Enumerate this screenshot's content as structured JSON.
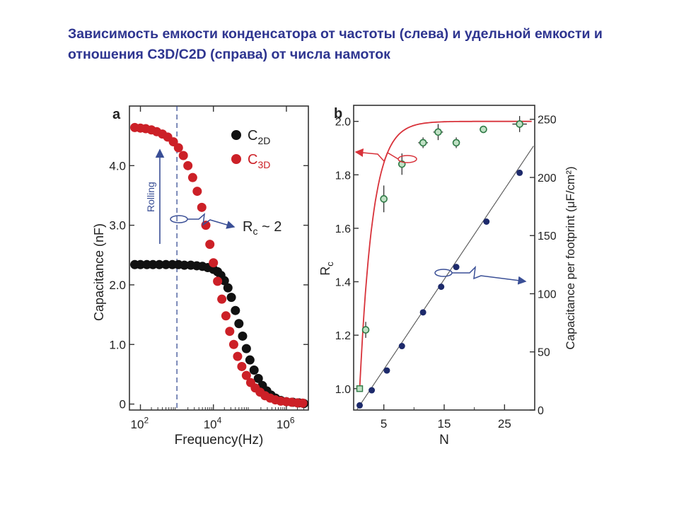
{
  "slide": {
    "title": "Зависимость емкости конденсатора от частоты (слева) и удельной емкости и отношения C3D/C2D (справа) от числа намоток"
  },
  "colors": {
    "title": "#2e3590",
    "c2d": "#111111",
    "c3d": "#cc2027",
    "arrow": "#3a4f96",
    "fit_rc": "#d8323a",
    "rc_points": "#2f7a46",
    "cap_points": "#1d2a6b"
  },
  "chart_data": [
    {
      "type": "scatter",
      "panel_label": "a",
      "xlabel": "Frequency(Hz)",
      "ylabel": "Capacitance (nF)",
      "x_scale": "log",
      "xlim": [
        50,
        4000000
      ],
      "ylim": [
        -0.1,
        5.0
      ],
      "x_ticks": [
        100,
        10000,
        1000000
      ],
      "x_tick_labels": [
        {
          "base": "10",
          "exp": "2"
        },
        {
          "base": "10",
          "exp": "4"
        },
        {
          "base": "10",
          "exp": "6"
        }
      ],
      "y_ticks": [
        0,
        1,
        2,
        3,
        4
      ],
      "y_tick_labels": [
        "0",
        "1.0",
        "2.0",
        "3.0",
        "4.0"
      ],
      "legend": {
        "placement": "top-right",
        "entries": [
          {
            "base": "C",
            "sub": "2D"
          },
          {
            "base": "C",
            "sub": "3D"
          }
        ]
      },
      "annotations": {
        "rolling": "Rolling",
        "ratio_base": "R",
        "ratio_sub": "c",
        "ratio_rest": " ~ 2"
      },
      "marker_freq": 1000,
      "series": [
        {
          "name": "C2D",
          "points": [
            [
              70,
              2.34
            ],
            [
              100,
              2.34
            ],
            [
              150,
              2.34
            ],
            [
              220,
              2.34
            ],
            [
              330,
              2.34
            ],
            [
              500,
              2.34
            ],
            [
              750,
              2.34
            ],
            [
              1100,
              2.34
            ],
            [
              1600,
              2.33
            ],
            [
              2400,
              2.33
            ],
            [
              3500,
              2.32
            ],
            [
              5000,
              2.31
            ],
            [
              7000,
              2.29
            ],
            [
              10000,
              2.26
            ],
            [
              13000,
              2.22
            ],
            [
              16000,
              2.16
            ],
            [
              20000,
              2.07
            ],
            [
              25000,
              1.95
            ],
            [
              31000,
              1.79
            ],
            [
              40000,
              1.57
            ],
            [
              50000,
              1.35
            ],
            [
              63000,
              1.14
            ],
            [
              80000,
              0.93
            ],
            [
              100000,
              0.74
            ],
            [
              130000,
              0.57
            ],
            [
              170000,
              0.43
            ],
            [
              220000,
              0.31
            ],
            [
              290000,
              0.22
            ],
            [
              380000,
              0.15
            ],
            [
              500000,
              0.1
            ],
            [
              700000,
              0.06
            ],
            [
              1000000,
              0.04
            ],
            [
              1500000,
              0.03
            ],
            [
              2200000,
              0.02
            ],
            [
              3000000,
              0.01
            ]
          ]
        },
        {
          "name": "C3D",
          "points": [
            [
              70,
              4.64
            ],
            [
              100,
              4.63
            ],
            [
              140,
              4.62
            ],
            [
              200,
              4.6
            ],
            [
              280,
              4.57
            ],
            [
              400,
              4.53
            ],
            [
              560,
              4.48
            ],
            [
              800,
              4.4
            ],
            [
              1100,
              4.3
            ],
            [
              1500,
              4.17
            ],
            [
              2000,
              4.0
            ],
            [
              2700,
              3.8
            ],
            [
              3600,
              3.57
            ],
            [
              4800,
              3.3
            ],
            [
              6200,
              3.0
            ],
            [
              8000,
              2.68
            ],
            [
              10000,
              2.37
            ],
            [
              13000,
              2.06
            ],
            [
              17000,
              1.76
            ],
            [
              22000,
              1.48
            ],
            [
              28000,
              1.22
            ],
            [
              36000,
              1.0
            ],
            [
              46000,
              0.8
            ],
            [
              60000,
              0.63
            ],
            [
              80000,
              0.48
            ],
            [
              105000,
              0.36
            ],
            [
              140000,
              0.27
            ],
            [
              190000,
              0.2
            ],
            [
              260000,
              0.14
            ],
            [
              360000,
              0.1
            ],
            [
              500000,
              0.07
            ],
            [
              700000,
              0.05
            ],
            [
              1000000,
              0.04
            ],
            [
              1400000,
              0.03
            ],
            [
              2000000,
              0.02
            ],
            [
              2800000,
              0.015
            ]
          ]
        }
      ]
    },
    {
      "type": "scatter",
      "panel_label": "b",
      "xlabel": "N",
      "ylabel_left": "Rc",
      "ylabel_right": "Capacitance per footprint (μF/cm²)",
      "xlim": [
        0,
        30
      ],
      "ylim_left": [
        0.92,
        2.06
      ],
      "ylim_right": [
        0,
        262
      ],
      "x_ticks": [
        5,
        15,
        25
      ],
      "y_ticks_left": [
        1.0,
        1.2,
        1.4,
        1.6,
        1.8,
        2.0
      ],
      "y_tick_labels_left": [
        "1.0",
        "1.2",
        "1.4",
        "1.6",
        "1.8",
        "2.0"
      ],
      "y_ticks_right": [
        0,
        50,
        100,
        150,
        200,
        250
      ],
      "rc_series": {
        "name": "Rc",
        "points": [
          [
            1,
            1.0,
            0,
            0
          ],
          [
            2,
            1.22,
            0,
            0.03
          ],
          [
            5,
            1.71,
            0.4,
            0.05
          ],
          [
            8,
            1.84,
            0.6,
            0.04
          ],
          [
            11.5,
            1.92,
            0.8,
            0.02
          ],
          [
            14,
            1.96,
            0.8,
            0.03
          ],
          [
            17,
            1.92,
            0.5,
            0.02
          ],
          [
            21.5,
            1.97,
            0.6,
            0.01
          ],
          [
            27.5,
            1.99,
            1.2,
            0.03
          ]
        ]
      },
      "cap_series": {
        "name": "Capacitance per footprint",
        "points": [
          [
            1,
            4
          ],
          [
            3,
            17
          ],
          [
            5.5,
            34
          ],
          [
            8,
            55
          ],
          [
            11.5,
            84
          ],
          [
            14.5,
            106
          ],
          [
            17,
            123
          ],
          [
            22,
            162
          ],
          [
            27.5,
            204
          ]
        ]
      }
    }
  ]
}
